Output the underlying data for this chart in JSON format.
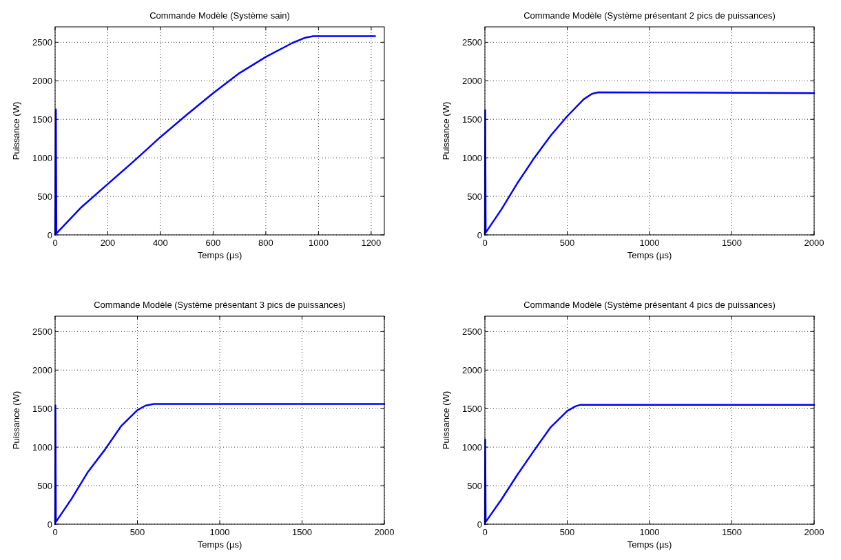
{
  "chart_data": [
    {
      "type": "line",
      "title": "Commande Modèle (Système sain)",
      "xlabel": "Temps (µs)",
      "ylabel": "Puissance (W)",
      "xlim": [
        0,
        1250
      ],
      "xticks": [
        0,
        200,
        400,
        600,
        800,
        1000,
        1200
      ],
      "ylim": [
        0,
        2700
      ],
      "yticks": [
        0,
        500,
        1000,
        1500,
        2000,
        2500
      ],
      "grid": true,
      "series": [
        {
          "color": "#0000ff",
          "x": [
            0,
            3,
            5,
            100,
            200,
            300,
            400,
            500,
            600,
            700,
            800,
            900,
            950,
            980,
            1215
          ],
          "values": [
            0,
            1630,
            20,
            360,
            660,
            960,
            1270,
            1560,
            1840,
            2100,
            2310,
            2490,
            2560,
            2580,
            2580
          ]
        }
      ]
    },
    {
      "type": "line",
      "title": "Commande Modèle (Système présentant 2 pics de puissances)",
      "xlabel": "Temps (µs)",
      "ylabel": "Puissance (W)",
      "xlim": [
        0,
        2000
      ],
      "xticks": [
        0,
        500,
        1000,
        1500,
        2000
      ],
      "ylim": [
        0,
        2700
      ],
      "yticks": [
        0,
        500,
        1000,
        1500,
        2000,
        2500
      ],
      "grid": true,
      "series": [
        {
          "color": "#0000ff",
          "x": [
            0,
            2,
            5,
            100,
            200,
            300,
            400,
            500,
            600,
            650,
            690,
            2000
          ],
          "values": [
            0,
            1620,
            30,
            330,
            680,
            1000,
            1290,
            1540,
            1760,
            1830,
            1850,
            1840
          ]
        }
      ]
    },
    {
      "type": "line",
      "title": "Commande Modèle (Système présentant 3 pics de puissances)",
      "xlabel": "Temps (µs)",
      "ylabel": "Puissance (W)",
      "xlim": [
        0,
        2000
      ],
      "xticks": [
        0,
        500,
        1000,
        1500,
        2000
      ],
      "ylim": [
        0,
        2700
      ],
      "yticks": [
        0,
        500,
        1000,
        1500,
        2000,
        2500
      ],
      "grid": true,
      "series": [
        {
          "color": "#0000ff",
          "x": [
            0,
            2,
            5,
            100,
            200,
            300,
            400,
            500,
            550,
            600,
            2000
          ],
          "values": [
            0,
            1540,
            30,
            330,
            680,
            960,
            1270,
            1480,
            1540,
            1560,
            1560
          ]
        }
      ]
    },
    {
      "type": "line",
      "title": "Commande Modèle (Système présentant 4 pics de puissances)",
      "xlabel": "Temps (µs)",
      "ylabel": "Puissance (W)",
      "xlim": [
        0,
        2000
      ],
      "xticks": [
        0,
        500,
        1000,
        1500,
        2000
      ],
      "ylim": [
        0,
        2700
      ],
      "yticks": [
        0,
        500,
        1000,
        1500,
        2000,
        2500
      ],
      "grid": true,
      "series": [
        {
          "color": "#0000ff",
          "x": [
            0,
            2,
            5,
            100,
            200,
            300,
            400,
            500,
            550,
            580,
            2000
          ],
          "values": [
            0,
            1100,
            30,
            320,
            650,
            960,
            1260,
            1470,
            1530,
            1550,
            1550
          ]
        }
      ]
    }
  ]
}
